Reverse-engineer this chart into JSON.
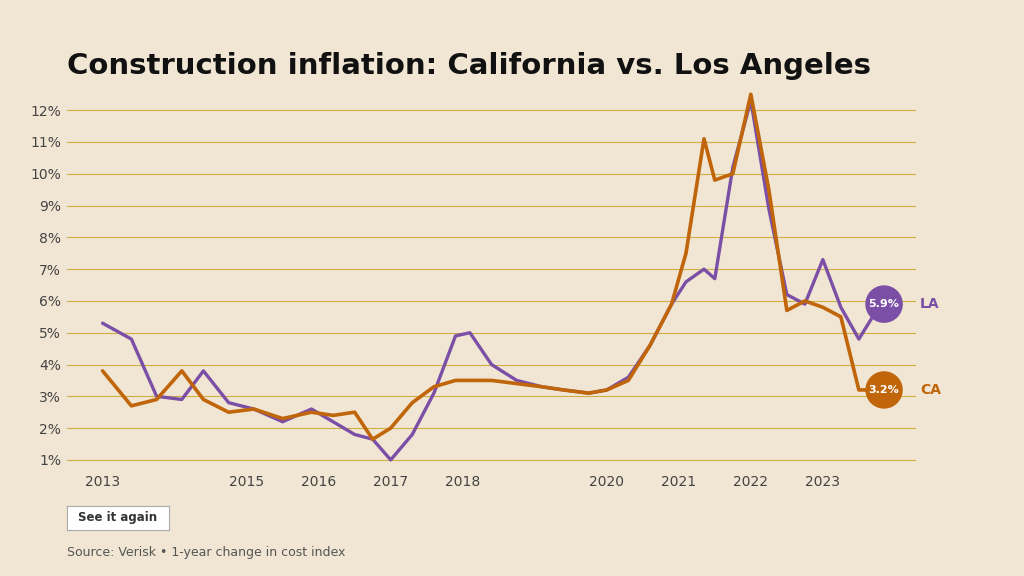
{
  "title": "Construction inflation: California vs. Los Angeles",
  "source": "Source: Verisk • 1-year change in cost index",
  "see_it_again": "See it again",
  "la_color": "#7b4fa6",
  "ca_color": "#c0650a",
  "background_color": "#f0e6d3",
  "grid_color": "#c8a020",
  "title_fontsize": 21,
  "axis_fontsize": 10,
  "ylim": [
    0.7,
    13.2
  ],
  "yticks": [
    1,
    2,
    3,
    4,
    5,
    6,
    7,
    8,
    9,
    10,
    11,
    12
  ],
  "x_tick_years": [
    2013,
    2015,
    2016,
    2017,
    2018,
    2020,
    2021,
    2022,
    2023
  ],
  "xlim": [
    2012.5,
    2024.3
  ],
  "la_x": [
    2013.0,
    2013.4,
    2013.75,
    2014.1,
    2014.4,
    2014.75,
    2015.1,
    2015.5,
    2015.9,
    2016.2,
    2016.5,
    2016.75,
    2017.0,
    2017.3,
    2017.6,
    2017.9,
    2018.1,
    2018.4,
    2018.75,
    2019.1,
    2019.4,
    2019.75,
    2020.0,
    2020.3,
    2020.6,
    2020.9,
    2021.1,
    2021.35,
    2021.5,
    2021.75,
    2022.0,
    2022.25,
    2022.5,
    2022.75,
    2023.0,
    2023.25,
    2023.5,
    2023.8
  ],
  "la_y": [
    5.3,
    4.8,
    3.0,
    2.9,
    3.8,
    2.8,
    2.6,
    2.2,
    2.6,
    2.2,
    1.8,
    1.65,
    1.0,
    1.8,
    3.1,
    4.9,
    5.0,
    4.0,
    3.5,
    3.3,
    3.2,
    3.1,
    3.2,
    3.6,
    4.6,
    5.9,
    6.6,
    7.0,
    6.7,
    10.2,
    12.3,
    8.9,
    6.2,
    5.9,
    7.3,
    5.8,
    4.8,
    5.9
  ],
  "ca_x": [
    2013.0,
    2013.4,
    2013.75,
    2014.1,
    2014.4,
    2014.75,
    2015.1,
    2015.5,
    2015.9,
    2016.2,
    2016.5,
    2016.75,
    2017.0,
    2017.3,
    2017.6,
    2017.9,
    2018.1,
    2018.4,
    2018.75,
    2019.1,
    2019.4,
    2019.75,
    2020.0,
    2020.3,
    2020.6,
    2020.9,
    2021.1,
    2021.35,
    2021.5,
    2021.75,
    2022.0,
    2022.25,
    2022.5,
    2022.75,
    2023.0,
    2023.25,
    2023.5,
    2023.8
  ],
  "ca_y": [
    3.8,
    2.7,
    2.9,
    3.8,
    2.9,
    2.5,
    2.6,
    2.3,
    2.5,
    2.4,
    2.5,
    1.65,
    2.0,
    2.8,
    3.3,
    3.5,
    3.5,
    3.5,
    3.4,
    3.3,
    3.2,
    3.1,
    3.2,
    3.5,
    4.6,
    5.9,
    7.5,
    11.1,
    9.8,
    10.0,
    12.5,
    9.5,
    5.7,
    6.0,
    5.8,
    5.5,
    3.2,
    3.2
  ]
}
